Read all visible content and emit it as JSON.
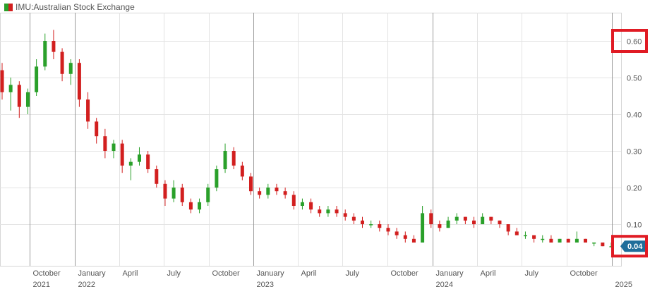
{
  "legend": {
    "label": "IMU:Australian Stock Exchange"
  },
  "colors": {
    "up": "#2aa02a",
    "down": "#d21f1f",
    "grid": "#e3e3e3",
    "major_grid": "#9a9a9a",
    "price_tag": "#1f6d9a",
    "highlight": "#e01b24"
  },
  "chart_data": {
    "type": "candlestick",
    "title": "",
    "xlabel": "",
    "ylabel": "",
    "ylim": [
      0.0,
      0.68
    ],
    "y_ticks": [
      "0.10",
      "0.20",
      "0.30",
      "0.40",
      "0.50",
      "0.60"
    ],
    "grid": true,
    "x_ticks": [
      {
        "label": "October",
        "sub": "2021",
        "date": "2021-10-01"
      },
      {
        "label": "January",
        "sub": "2022",
        "date": "2022-01-01"
      },
      {
        "label": "April",
        "sub": "",
        "date": "2022-04-01"
      },
      {
        "label": "July",
        "sub": "",
        "date": "2022-07-01"
      },
      {
        "label": "October",
        "sub": "",
        "date": "2022-10-01"
      },
      {
        "label": "January",
        "sub": "2023",
        "date": "2023-01-01"
      },
      {
        "label": "April",
        "sub": "",
        "date": "2023-04-01"
      },
      {
        "label": "July",
        "sub": "",
        "date": "2023-07-01"
      },
      {
        "label": "October",
        "sub": "",
        "date": "2023-10-01"
      },
      {
        "label": "January",
        "sub": "2024",
        "date": "2024-01-01"
      },
      {
        "label": "April",
        "sub": "",
        "date": "2024-04-01"
      },
      {
        "label": "July",
        "sub": "",
        "date": "2024-07-01"
      },
      {
        "label": "October",
        "sub": "",
        "date": "2024-10-01"
      },
      {
        "label": "",
        "sub": "2025",
        "date": "2025-01-01"
      }
    ],
    "current_price": "0.04",
    "highlighted_tick": "0.60",
    "series": [
      {
        "values": [
          [
            0.52,
            0.54,
            0.44,
            0.46
          ],
          [
            0.46,
            0.5,
            0.41,
            0.48
          ],
          [
            0.48,
            0.49,
            0.39,
            0.42
          ],
          [
            0.42,
            0.47,
            0.4,
            0.46
          ],
          [
            0.46,
            0.55,
            0.45,
            0.53
          ],
          [
            0.53,
            0.62,
            0.52,
            0.6
          ],
          [
            0.6,
            0.63,
            0.55,
            0.57
          ],
          [
            0.57,
            0.58,
            0.49,
            0.51
          ],
          [
            0.51,
            0.55,
            0.48,
            0.54
          ],
          [
            0.54,
            0.55,
            0.42,
            0.44
          ],
          [
            0.44,
            0.46,
            0.36,
            0.38
          ],
          [
            0.38,
            0.39,
            0.32,
            0.34
          ],
          [
            0.34,
            0.36,
            0.28,
            0.3
          ],
          [
            0.3,
            0.33,
            0.28,
            0.32
          ],
          [
            0.32,
            0.33,
            0.24,
            0.26
          ],
          [
            0.26,
            0.28,
            0.22,
            0.27
          ],
          [
            0.27,
            0.31,
            0.26,
            0.29
          ],
          [
            0.29,
            0.3,
            0.24,
            0.25
          ],
          [
            0.25,
            0.26,
            0.2,
            0.21
          ],
          [
            0.21,
            0.22,
            0.15,
            0.17
          ],
          [
            0.17,
            0.22,
            0.16,
            0.2
          ],
          [
            0.2,
            0.21,
            0.15,
            0.16
          ],
          [
            0.16,
            0.17,
            0.13,
            0.14
          ],
          [
            0.14,
            0.17,
            0.13,
            0.16
          ],
          [
            0.16,
            0.21,
            0.15,
            0.2
          ],
          [
            0.2,
            0.26,
            0.19,
            0.25
          ],
          [
            0.25,
            0.32,
            0.24,
            0.3
          ],
          [
            0.3,
            0.31,
            0.25,
            0.26
          ],
          [
            0.26,
            0.27,
            0.22,
            0.23
          ],
          [
            0.23,
            0.24,
            0.18,
            0.19
          ],
          [
            0.19,
            0.2,
            0.17,
            0.18
          ],
          [
            0.18,
            0.21,
            0.17,
            0.2
          ],
          [
            0.2,
            0.21,
            0.18,
            0.19
          ],
          [
            0.19,
            0.2,
            0.17,
            0.18
          ],
          [
            0.18,
            0.19,
            0.14,
            0.15
          ],
          [
            0.15,
            0.17,
            0.14,
            0.16
          ],
          [
            0.16,
            0.17,
            0.13,
            0.14
          ],
          [
            0.14,
            0.15,
            0.12,
            0.13
          ],
          [
            0.13,
            0.15,
            0.12,
            0.14
          ],
          [
            0.14,
            0.15,
            0.12,
            0.13
          ],
          [
            0.13,
            0.14,
            0.11,
            0.12
          ],
          [
            0.12,
            0.13,
            0.1,
            0.11
          ],
          [
            0.11,
            0.12,
            0.09,
            0.1
          ],
          [
            0.1,
            0.11,
            0.09,
            0.1
          ],
          [
            0.1,
            0.11,
            0.08,
            0.09
          ],
          [
            0.09,
            0.1,
            0.07,
            0.08
          ],
          [
            0.08,
            0.09,
            0.06,
            0.07
          ],
          [
            0.07,
            0.08,
            0.05,
            0.06
          ],
          [
            0.06,
            0.07,
            0.05,
            0.05
          ],
          [
            0.05,
            0.15,
            0.05,
            0.13
          ],
          [
            0.13,
            0.14,
            0.09,
            0.1
          ],
          [
            0.1,
            0.11,
            0.08,
            0.09
          ],
          [
            0.09,
            0.12,
            0.09,
            0.11
          ],
          [
            0.11,
            0.13,
            0.1,
            0.12
          ],
          [
            0.12,
            0.12,
            0.1,
            0.11
          ],
          [
            0.11,
            0.12,
            0.09,
            0.1
          ],
          [
            0.1,
            0.13,
            0.1,
            0.12
          ],
          [
            0.12,
            0.12,
            0.1,
            0.11
          ],
          [
            0.11,
            0.11,
            0.09,
            0.1
          ],
          [
            0.1,
            0.1,
            0.07,
            0.08
          ],
          [
            0.08,
            0.09,
            0.07,
            0.07
          ],
          [
            0.07,
            0.08,
            0.06,
            0.07
          ],
          [
            0.07,
            0.07,
            0.05,
            0.06
          ],
          [
            0.06,
            0.07,
            0.05,
            0.06
          ],
          [
            0.06,
            0.07,
            0.05,
            0.05
          ],
          [
            0.05,
            0.06,
            0.05,
            0.06
          ],
          [
            0.06,
            0.06,
            0.05,
            0.05
          ],
          [
            0.05,
            0.08,
            0.05,
            0.06
          ],
          [
            0.06,
            0.06,
            0.05,
            0.05
          ],
          [
            0.05,
            0.05,
            0.04,
            0.05
          ],
          [
            0.05,
            0.05,
            0.04,
            0.04
          ],
          [
            0.04,
            0.05,
            0.04,
            0.04
          ]
        ]
      }
    ]
  }
}
